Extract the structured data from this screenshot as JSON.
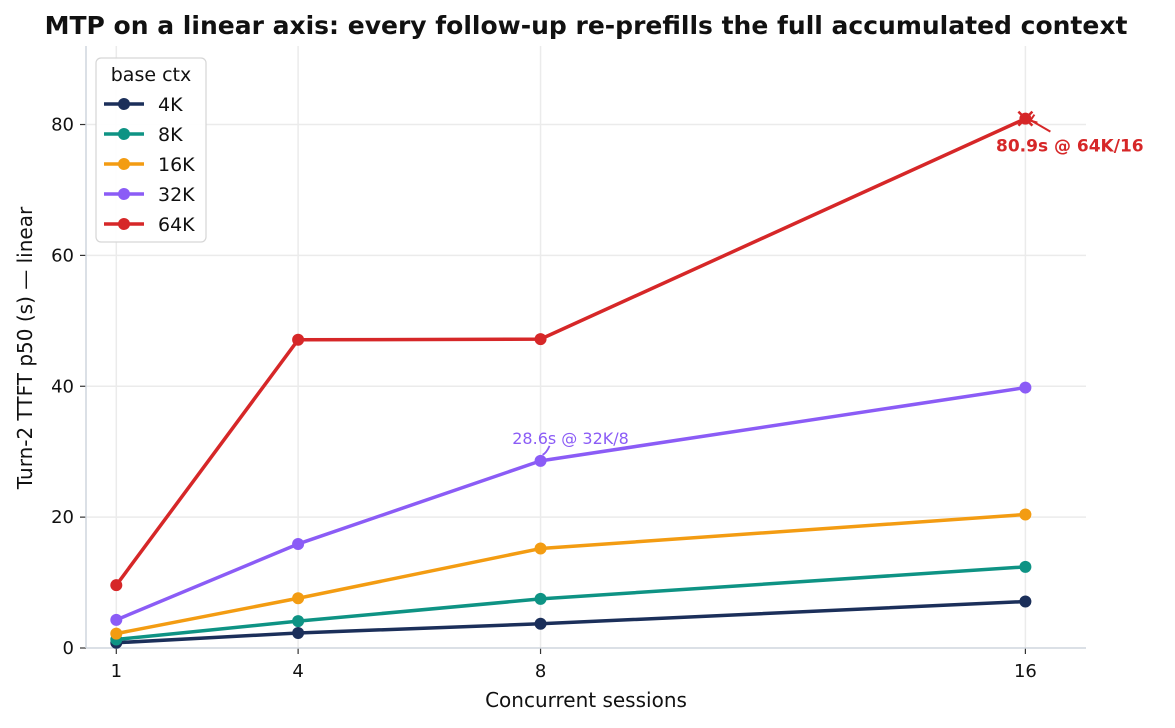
{
  "chart_data": {
    "type": "line",
    "title": "MTP on a linear axis: every follow-up re-prefills the full accumulated context",
    "xlabel": "Concurrent sessions",
    "ylabel": "Turn-2 TTFT p50 (s) — linear",
    "x": [
      1,
      4,
      8,
      16
    ],
    "x_ticks": [
      "1",
      "4",
      "8",
      "16"
    ],
    "y_ticks": [
      "0",
      "20",
      "40",
      "60",
      "80"
    ],
    "xlim": [
      0.5,
      17
    ],
    "ylim": [
      0,
      92
    ],
    "grid": true,
    "legend": {
      "title": "base ctx",
      "placement": "top-left"
    },
    "series": [
      {
        "name": "4K",
        "color": "#1b2f5a",
        "values": [
          0.8,
          2.3,
          3.7,
          7.1
        ]
      },
      {
        "name": "8K",
        "color": "#0e9384",
        "values": [
          1.3,
          4.1,
          7.5,
          12.4
        ]
      },
      {
        "name": "16K",
        "color": "#f39c12",
        "values": [
          2.2,
          7.6,
          15.2,
          20.4
        ]
      },
      {
        "name": "32K",
        "color": "#8b5cf6",
        "values": [
          4.3,
          15.9,
          28.6,
          39.8
        ]
      },
      {
        "name": "64K",
        "color": "#d62728",
        "values": [
          9.6,
          47.1,
          47.2,
          80.9
        ]
      }
    ],
    "annotations": [
      {
        "text": "80.9s @ 64K/16",
        "x": 16,
        "y": 80.9,
        "series": "64K"
      },
      {
        "text": "28.6s @ 32K/8",
        "x": 8,
        "y": 28.6,
        "series": "32K"
      }
    ]
  }
}
